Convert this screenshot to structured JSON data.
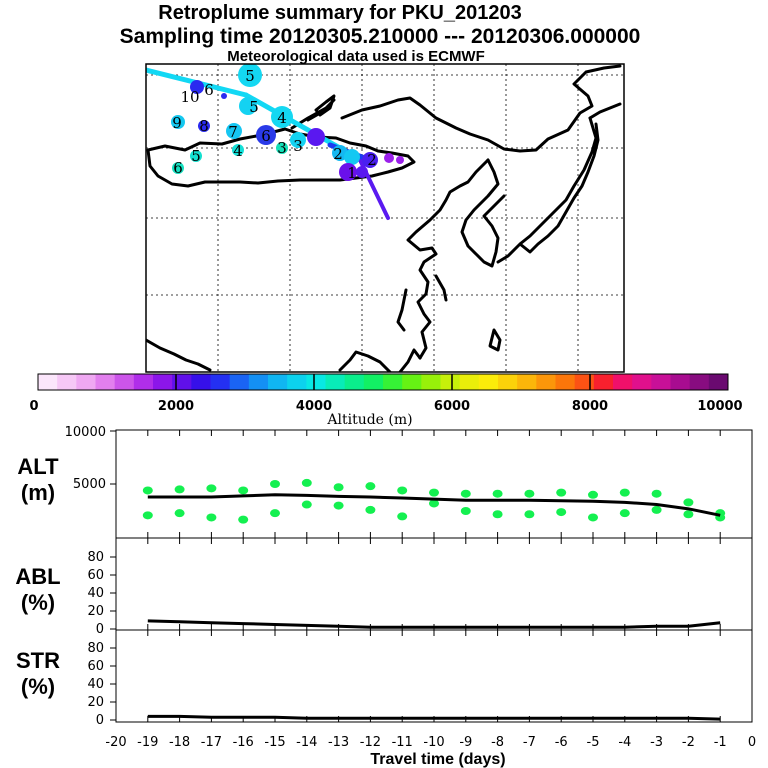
{
  "title": {
    "line1": "Retroplume summary for PKU_201203",
    "line2": "Sampling time   20120305.210000 --- 20120306.000000",
    "line3": "Meteorological data used is ECMWF"
  },
  "colorbar": {
    "label": "Altitude (m)",
    "tick_labels": [
      "0",
      "2000",
      "4000",
      "6000",
      "8000",
      "10000"
    ],
    "colors": [
      "#fbe6fb",
      "#f6c8f6",
      "#efa8f2",
      "#e27fee",
      "#cc55ea",
      "#b02eea",
      "#8c16ea",
      "#6010ea",
      "#3610ea",
      "#2430f2",
      "#1a64f4",
      "#1490f4",
      "#10b6f2",
      "#0cd2ee",
      "#08e8e4",
      "#08ecb8",
      "#0aee8c",
      "#12f064",
      "#36f236",
      "#66f214",
      "#98f00a",
      "#c6f00a",
      "#eaee0a",
      "#fcec0a",
      "#fcd20a",
      "#fcb60a",
      "#fc960a",
      "#fc760a",
      "#fc5214",
      "#f8202e",
      "#f0106a",
      "#e0108c",
      "#c81098",
      "#a80c90",
      "#880c80",
      "#6a0a70"
    ]
  },
  "map": {
    "trajectory_labels": [
      {
        "text": "5",
        "cls": "cyan"
      },
      {
        "text": "10",
        "cls": "blue"
      },
      {
        "text": "6",
        "cls": "blue"
      },
      {
        "text": "5",
        "cls": "cyan"
      },
      {
        "text": "4",
        "cls": "cyan"
      },
      {
        "text": "9",
        "cls": "cyan"
      },
      {
        "text": "8",
        "cls": "blue"
      },
      {
        "text": "7",
        "cls": "cyan"
      },
      {
        "text": "6",
        "cls": "blue"
      },
      {
        "text": "3",
        "cls": "blue"
      },
      {
        "text": "2",
        "cls": "cyan"
      },
      {
        "text": "2",
        "cls": "blue"
      },
      {
        "text": "1",
        "cls": "purple"
      },
      {
        "text": "4",
        "cls": "cyan"
      },
      {
        "text": "3",
        "cls": "cyan"
      },
      {
        "text": "6",
        "cls": "cyan"
      },
      {
        "text": "5",
        "cls": "cyan"
      }
    ]
  },
  "chart_data": [
    {
      "type": "scatter",
      "name": "ALT",
      "panel_label": "ALT",
      "panel_unit": "(m)",
      "x": [
        -19,
        -18,
        -17,
        -16,
        -15,
        -14,
        -13,
        -12,
        -11,
        -10,
        -9,
        -8,
        -7,
        -6,
        -5,
        -4,
        -3,
        -2,
        -1
      ],
      "mean_line": [
        3800,
        3800,
        3800,
        3900,
        4000,
        3950,
        3850,
        3800,
        3700,
        3600,
        3500,
        3500,
        3500,
        3450,
        3400,
        3300,
        3100,
        2700,
        2100
      ],
      "cluster_points": [
        {
          "name": "upper",
          "x": [
            -19,
            -18,
            -17,
            -16,
            -15,
            -14,
            -13,
            -12,
            -11,
            -10,
            -9,
            -8,
            -7,
            -6,
            -5,
            -4,
            -3,
            -2,
            -1
          ],
          "y": [
            4400,
            4500,
            4600,
            4400,
            5000,
            5100,
            4700,
            4800,
            4400,
            4200,
            4100,
            4100,
            4100,
            4200,
            4000,
            4200,
            4100,
            3300,
            2300
          ]
        },
        {
          "name": "lower",
          "x": [
            -19,
            -18,
            -17,
            -16,
            -15,
            -14,
            -13,
            -12,
            -11,
            -10,
            -9,
            -8,
            -7,
            -6,
            -5,
            -4,
            -3,
            -2,
            -1
          ],
          "y": [
            2100,
            2300,
            1900,
            1700,
            2300,
            3100,
            3000,
            2600,
            2000,
            3200,
            2500,
            2200,
            2200,
            2400,
            1900,
            2300,
            2600,
            2200,
            1900
          ]
        }
      ],
      "point_color": "#14f050",
      "ylim": [
        0,
        10000
      ],
      "yticks": [
        "5000",
        "10000"
      ]
    },
    {
      "type": "line",
      "name": "ABL",
      "panel_label": "ABL",
      "panel_unit": "(%)",
      "x": [
        -19,
        -18,
        -17,
        -16,
        -15,
        -14,
        -13,
        -12,
        -11,
        -10,
        -9,
        -8,
        -7,
        -6,
        -5,
        -4,
        -3,
        -2,
        -1
      ],
      "values": [
        9,
        8,
        7,
        6,
        5,
        4,
        3,
        2,
        2,
        2,
        2,
        2,
        2,
        2,
        2,
        2,
        3,
        3,
        7
      ],
      "ylim": [
        0,
        100
      ],
      "yticks": [
        "0",
        "20",
        "40",
        "60",
        "80"
      ]
    },
    {
      "type": "line",
      "name": "STR",
      "panel_label": "STR",
      "panel_unit": "(%)",
      "x": [
        -19,
        -18,
        -17,
        -16,
        -15,
        -14,
        -13,
        -12,
        -11,
        -10,
        -9,
        -8,
        -7,
        -6,
        -5,
        -4,
        -3,
        -2,
        -1
      ],
      "values": [
        4,
        4,
        3,
        3,
        3,
        2,
        2,
        2,
        2,
        2,
        2,
        2,
        2,
        2,
        2,
        2,
        2,
        2,
        1
      ],
      "ylim": [
        0,
        100
      ],
      "yticks": [
        "0",
        "20",
        "40",
        "60",
        "80"
      ]
    }
  ],
  "xaxis": {
    "label": "Travel time (days)",
    "tick_labels": [
      "-20",
      "-19",
      "-18",
      "-17",
      "-16",
      "-15",
      "-14",
      "-13",
      "-12",
      "-11",
      "-10",
      "-9",
      "-8",
      "-7",
      "-6",
      "-5",
      "-4",
      "-3",
      "-2",
      "-1",
      "0"
    ]
  }
}
